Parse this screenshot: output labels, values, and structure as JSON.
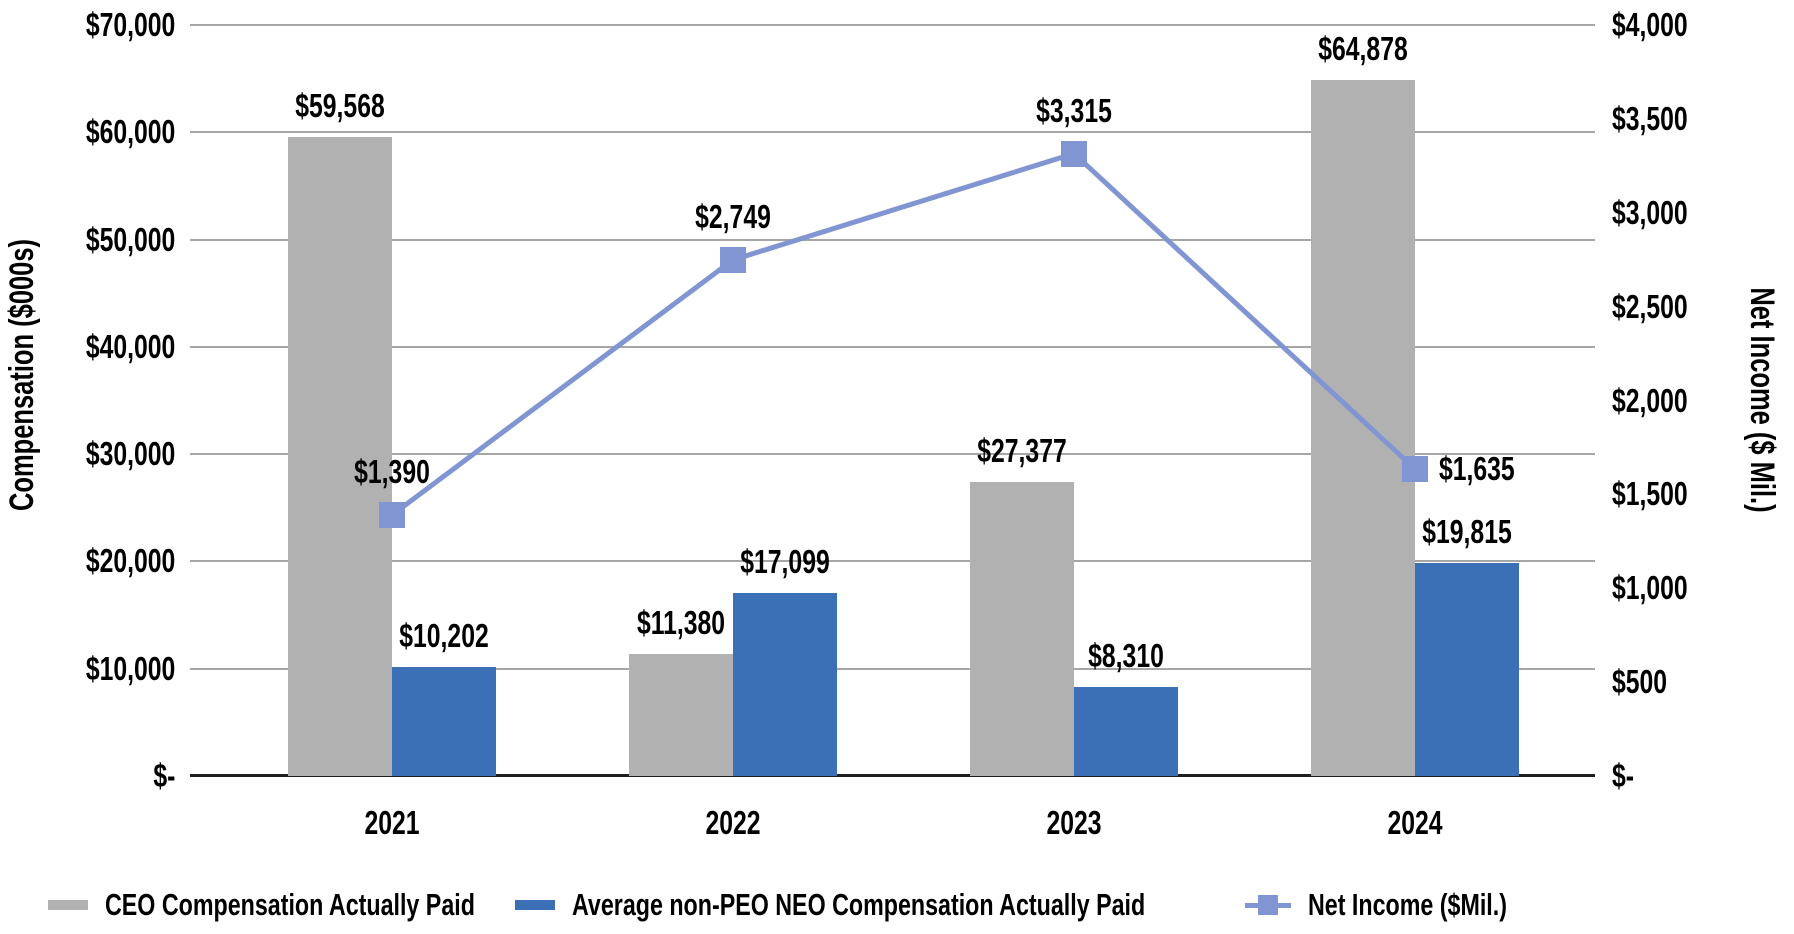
{
  "chart_data": {
    "type": "bar+line combo",
    "categories": [
      "2021",
      "2022",
      "2023",
      "2024"
    ],
    "left_axis": {
      "title": "Compensation ($000s)",
      "ticks": [
        "$70,000",
        "$60,000",
        "$50,000",
        "$40,000",
        "$30,000",
        "$20,000",
        "$10,000",
        "$-"
      ],
      "min": 0,
      "max": 70000
    },
    "right_axis": {
      "title": "Net Income ($ Mil.)",
      "ticks": [
        "$4,000",
        "$3,500",
        "$3,000",
        "$2,500",
        "$2,000",
        "$1,500",
        "$1,000",
        "$500",
        "$-"
      ],
      "min": 0,
      "max": 4000
    },
    "series": [
      {
        "name": "CEO Compensation Actually Paid",
        "type": "bar",
        "axis": "left",
        "color": "#B1B1B1",
        "values": [
          59568,
          11380,
          27377,
          64878
        ],
        "labels": [
          "$59,568",
          "$11,380",
          "$27,377",
          "$64,878"
        ]
      },
      {
        "name": "Average non-PEO NEO Compensation Actually Paid",
        "type": "bar",
        "axis": "left",
        "color": "#3B70B6",
        "values": [
          10202,
          17099,
          8310,
          19815
        ],
        "labels": [
          "$10,202",
          "$17,099",
          "$8,310",
          "$19,815"
        ]
      },
      {
        "name": "Net Income ($Mil.)",
        "type": "line",
        "axis": "right",
        "color": "#8095D1",
        "values": [
          1390,
          2749,
          3315,
          1635
        ],
        "labels": [
          "$1,390",
          "$2,749",
          "$3,315",
          "$1,635"
        ],
        "label_positions": [
          "above",
          "above",
          "above",
          "right"
        ]
      }
    ],
    "legend": [
      {
        "label": "CEO Compensation Actually Paid",
        "swatch": "bar"
      },
      {
        "label": "Average non-PEO NEO Compensation Actually Paid",
        "swatch": "bar"
      },
      {
        "label": "Net Income ($Mil.)",
        "swatch": "line-square"
      }
    ],
    "grid": "horizontal",
    "gridline_color": "#A6A6A6",
    "axis_line_color": "#1F1F1F",
    "legend_position": "bottom"
  }
}
